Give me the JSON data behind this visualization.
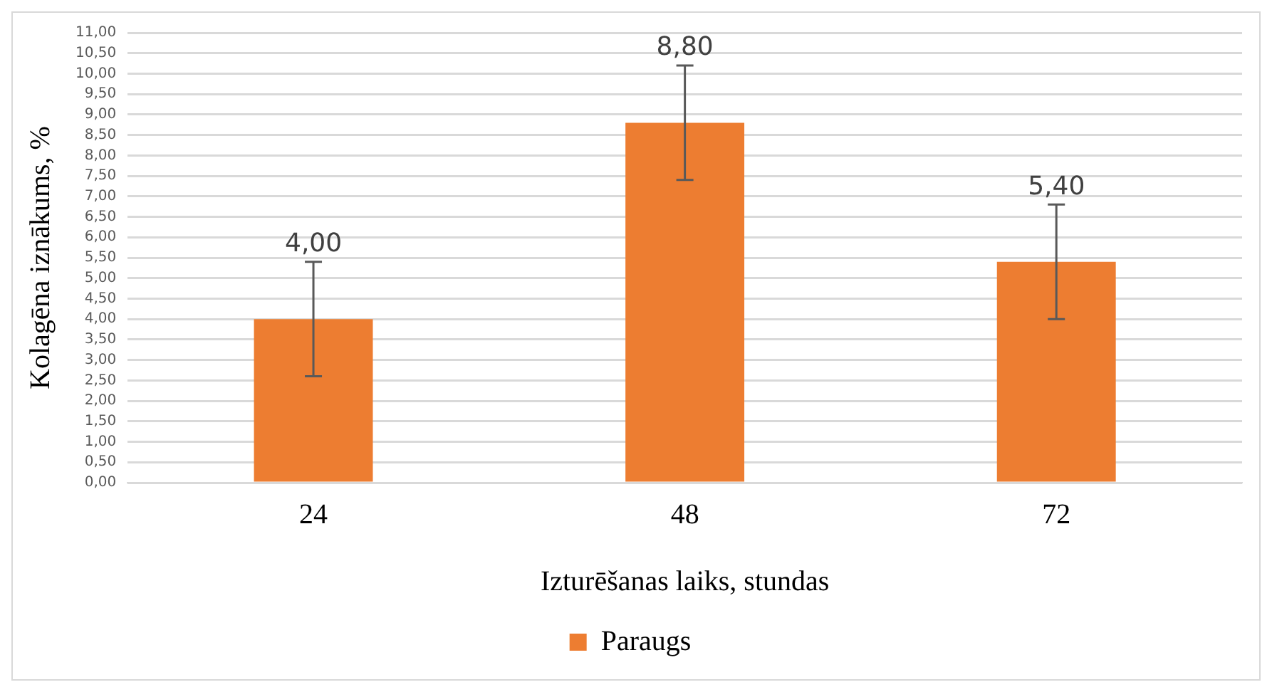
{
  "chart_data": {
    "type": "bar",
    "xlabel": "Izturēšanas laiks, stundas",
    "ylabel": "Kolagēna iznākums, %",
    "categories": [
      "24",
      "48",
      "72"
    ],
    "series": [
      {
        "name": "Paraugs",
        "color": "#ed7d31",
        "values": [
          4.0,
          8.8,
          5.4
        ],
        "errors": [
          1.4,
          1.4,
          1.4
        ]
      }
    ],
    "value_labels": [
      "4,00",
      "8,80",
      "5,40"
    ],
    "ylim": [
      0,
      11
    ],
    "yticks": [
      {
        "value": 0,
        "label": "0,00"
      },
      {
        "value": 0.5,
        "label": "0,50"
      },
      {
        "value": 1,
        "label": "1,00"
      },
      {
        "value": 1.5,
        "label": "1,50"
      },
      {
        "value": 2,
        "label": "2,00"
      },
      {
        "value": 2.5,
        "label": "2,50"
      },
      {
        "value": 3,
        "label": "3,00"
      },
      {
        "value": 3.5,
        "label": "3,50"
      },
      {
        "value": 4,
        "label": "4,00"
      },
      {
        "value": 4.5,
        "label": "4,50"
      },
      {
        "value": 5,
        "label": "5,00"
      },
      {
        "value": 5.5,
        "label": "5,50"
      },
      {
        "value": 6,
        "label": "6,00"
      },
      {
        "value": 6.5,
        "label": "6,50"
      },
      {
        "value": 7,
        "label": "7,00"
      },
      {
        "value": 7.5,
        "label": "7,50"
      },
      {
        "value": 8,
        "label": "8,00"
      },
      {
        "value": 8.5,
        "label": "8,50"
      },
      {
        "value": 9,
        "label": "9,00"
      },
      {
        "value": 9.5,
        "label": "9,50"
      },
      {
        "value": 10,
        "label": "10,00"
      },
      {
        "value": 10.5,
        "label": "10,50"
      },
      {
        "value": 11,
        "label": "11,00"
      }
    ],
    "grid": "y",
    "legend": "bottom"
  }
}
